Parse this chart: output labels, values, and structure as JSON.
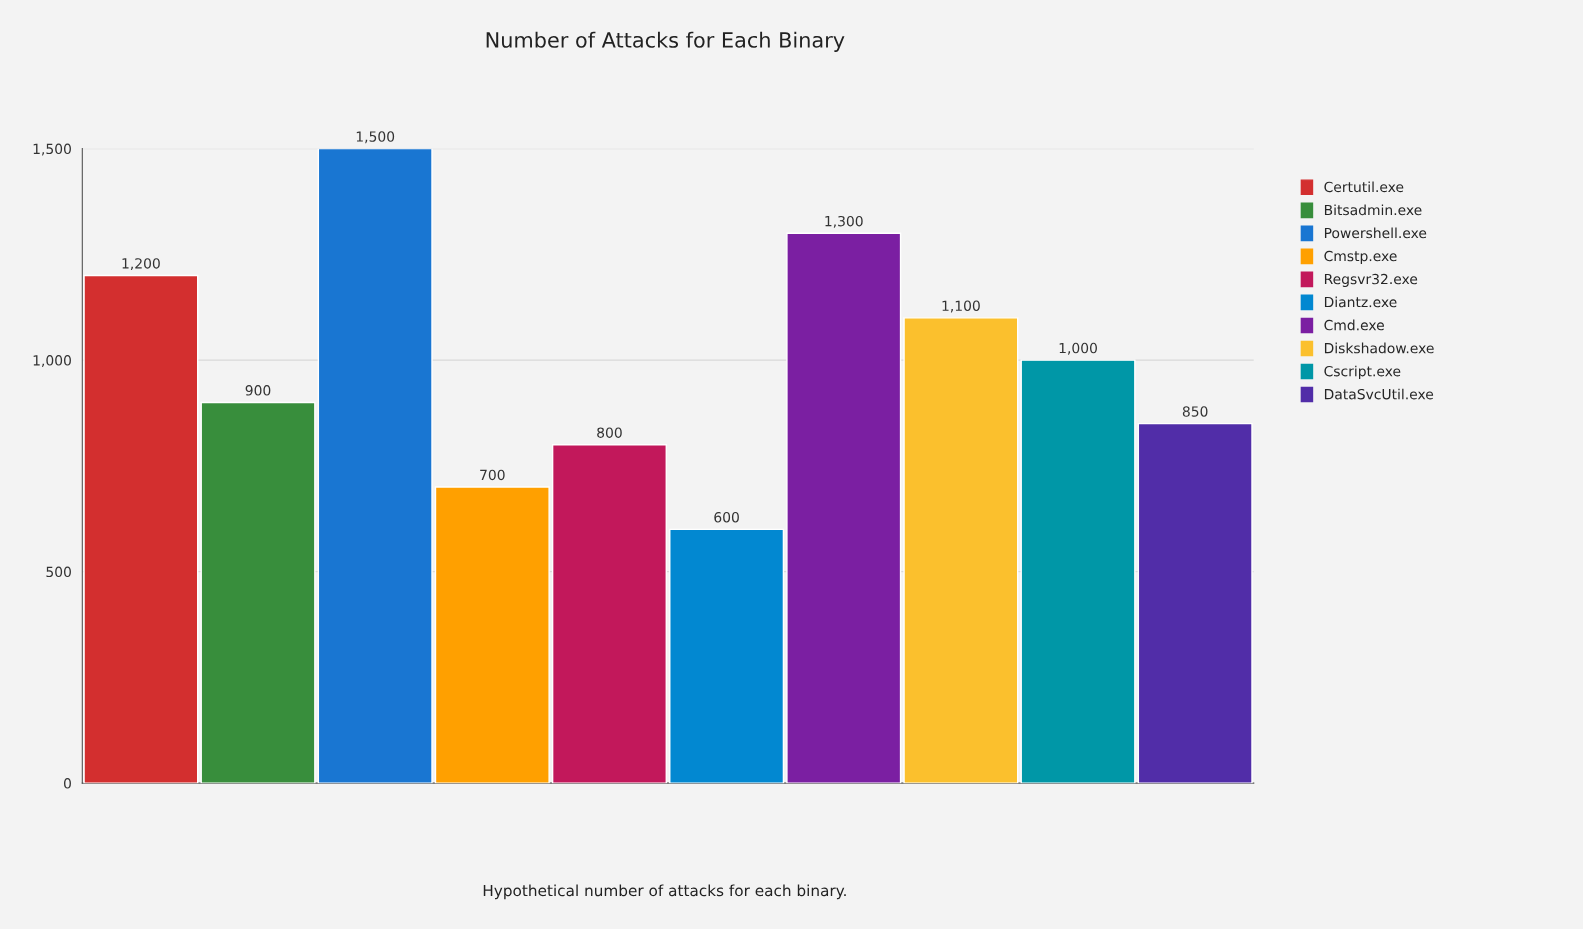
{
  "chart_data": {
    "type": "bar",
    "title": "Number of Attacks for Each Binary",
    "categories": [
      null
    ],
    "series": [
      {
        "name": "Certutil.exe",
        "color": "#d32f2f",
        "values": [
          1200
        ],
        "value_labels": [
          "1,200"
        ]
      },
      {
        "name": "Bitsadmin.exe",
        "color": "#388e3c",
        "values": [
          900
        ],
        "value_labels": [
          "900"
        ]
      },
      {
        "name": "Powershell.exe",
        "color": "#1976d2",
        "values": [
          1500
        ],
        "value_labels": [
          "1,500"
        ]
      },
      {
        "name": "Cmstp.exe",
        "color": "#ffa000",
        "values": [
          700
        ],
        "value_labels": [
          "700"
        ]
      },
      {
        "name": "Regsvr32.exe",
        "color": "#c2185b",
        "values": [
          800
        ],
        "value_labels": [
          "800"
        ]
      },
      {
        "name": "Diantz.exe",
        "color": "#0288d1",
        "values": [
          600
        ],
        "value_labels": [
          "600"
        ]
      },
      {
        "name": "Cmd.exe",
        "color": "#7b1fa2",
        "values": [
          1300
        ],
        "value_labels": [
          "1,300"
        ]
      },
      {
        "name": "Diskshadow.exe",
        "color": "#fbc02d",
        "values": [
          1100
        ],
        "value_labels": [
          "1,100"
        ]
      },
      {
        "name": "Cscript.exe",
        "color": "#0097a7",
        "values": [
          1000
        ],
        "value_labels": [
          "1,000"
        ]
      },
      {
        "name": "DataSvcUtil.exe",
        "color": "#512da8",
        "values": [
          850
        ],
        "value_labels": [
          "850"
        ]
      }
    ],
    "ylim": [
      0,
      1500
    ],
    "yticks": [
      0,
      500,
      {
        "value": 1000,
        "label": "1,000"
      },
      {
        "value": 1500,
        "label": "1,500"
      }
    ],
    "grid": "y",
    "legend": "right",
    "annotations": [
      "Hypothetical number of attacks for each binary."
    ]
  }
}
